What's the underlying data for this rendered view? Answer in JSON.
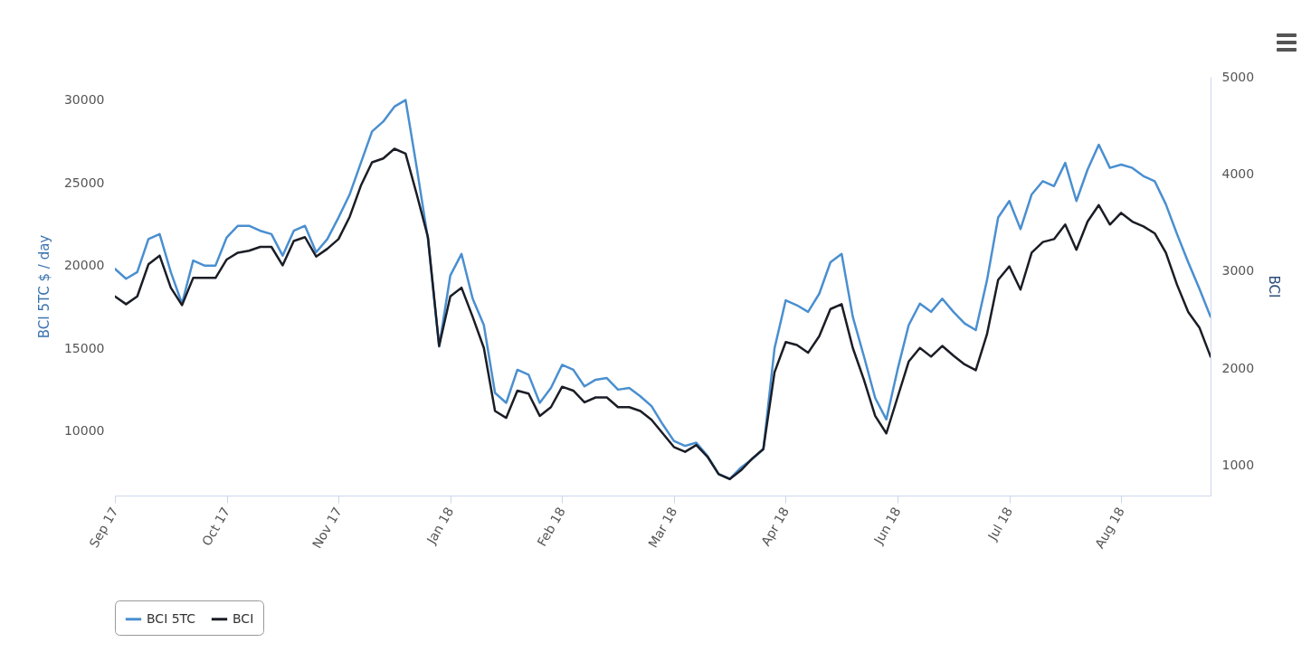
{
  "chart_data": {
    "type": "line",
    "xlabel": null,
    "ylabel": "BCI 5TC $ / day",
    "y2label": "BCI",
    "categories": [
      "Sep 17",
      null,
      null,
      null,
      null,
      null,
      null,
      null,
      null,
      null,
      "Oct 17",
      null,
      null,
      null,
      null,
      null,
      null,
      null,
      null,
      null,
      "Nov 17",
      null,
      null,
      null,
      null,
      null,
      null,
      null,
      null,
      null,
      "Jan 18",
      null,
      null,
      null,
      null,
      null,
      null,
      null,
      null,
      null,
      "Feb 18",
      null,
      null,
      null,
      null,
      null,
      null,
      null,
      null,
      null,
      "Mar 18",
      null,
      null,
      null,
      null,
      null,
      null,
      null,
      null,
      null,
      "Apr 18",
      null,
      null,
      null,
      null,
      null,
      null,
      null,
      null,
      null,
      "Jun 18",
      null,
      null,
      null,
      null,
      null,
      null,
      null,
      null,
      null,
      "Jul 18",
      null,
      null,
      null,
      null,
      null,
      null,
      null,
      null,
      null,
      "Aug 18",
      null,
      null,
      null,
      null,
      null,
      null,
      null,
      null
    ],
    "series": [
      {
        "name": "BCI 5TC",
        "color": "#4a8fd0",
        "values": [
          19800,
          19200,
          19600,
          21600,
          21900,
          19600,
          17700,
          20300,
          20000,
          20000,
          21700,
          22400,
          22400,
          22100,
          21900,
          20600,
          22100,
          22400,
          20800,
          21600,
          22900,
          24300,
          26200,
          28100,
          28700,
          29600,
          30000,
          25900,
          21600,
          15100,
          19400,
          20700,
          18000,
          16400,
          12300,
          11700,
          13700,
          13400,
          11700,
          12600,
          14000,
          13700,
          12700,
          13100,
          13200,
          12500,
          12600,
          12100,
          11500,
          10400,
          9400,
          9100,
          9300,
          8500,
          7400,
          7100,
          7800,
          8300,
          8900,
          15000,
          17900,
          17600,
          17200,
          18300,
          20200,
          20700,
          16900,
          14500,
          12000,
          10700,
          13700,
          16400,
          17700,
          17200,
          18000,
          17200,
          16500,
          16100,
          19100,
          22900,
          23900,
          22200,
          24300,
          25100,
          24800,
          26200,
          23900,
          25800,
          27300,
          25900,
          26100,
          25900,
          25400,
          25100,
          23700,
          21900,
          20200,
          18600,
          16900
        ]
      },
      {
        "name": "BCI",
        "color": "#1b1d26",
        "axis": "y2",
        "values": [
          2740,
          2660,
          2740,
          3070,
          3160,
          2830,
          2650,
          2930,
          2930,
          2930,
          3120,
          3190,
          3210,
          3250,
          3250,
          3060,
          3310,
          3350,
          3150,
          3230,
          3330,
          3560,
          3880,
          4120,
          4160,
          4260,
          4210,
          3790,
          3350,
          2230,
          2740,
          2830,
          2530,
          2210,
          1560,
          1490,
          1770,
          1740,
          1510,
          1600,
          1810,
          1770,
          1650,
          1700,
          1700,
          1600,
          1600,
          1560,
          1470,
          1330,
          1190,
          1140,
          1210,
          1090,
          910,
          860,
          950,
          1070,
          1170,
          1960,
          2270,
          2240,
          2160,
          2330,
          2610,
          2660,
          2210,
          1880,
          1510,
          1330,
          1700,
          2070,
          2210,
          2120,
          2230,
          2130,
          2040,
          1980,
          2350,
          2910,
          3050,
          2810,
          3190,
          3300,
          3330,
          3480,
          3220,
          3510,
          3680,
          3480,
          3600,
          3510,
          3460,
          3390,
          3190,
          2860,
          2580,
          2420,
          2120
        ]
      }
    ],
    "ylim": [
      6100,
      31400
    ],
    "yticks": [
      10000,
      15000,
      20000,
      25000,
      30000
    ],
    "y2lim": [
      690,
      5000
    ],
    "y2ticks": [
      1000,
      2000,
      3000,
      4000,
      5000
    ],
    "legend": "bottom",
    "marker": "none",
    "line_style": "solid"
  }
}
